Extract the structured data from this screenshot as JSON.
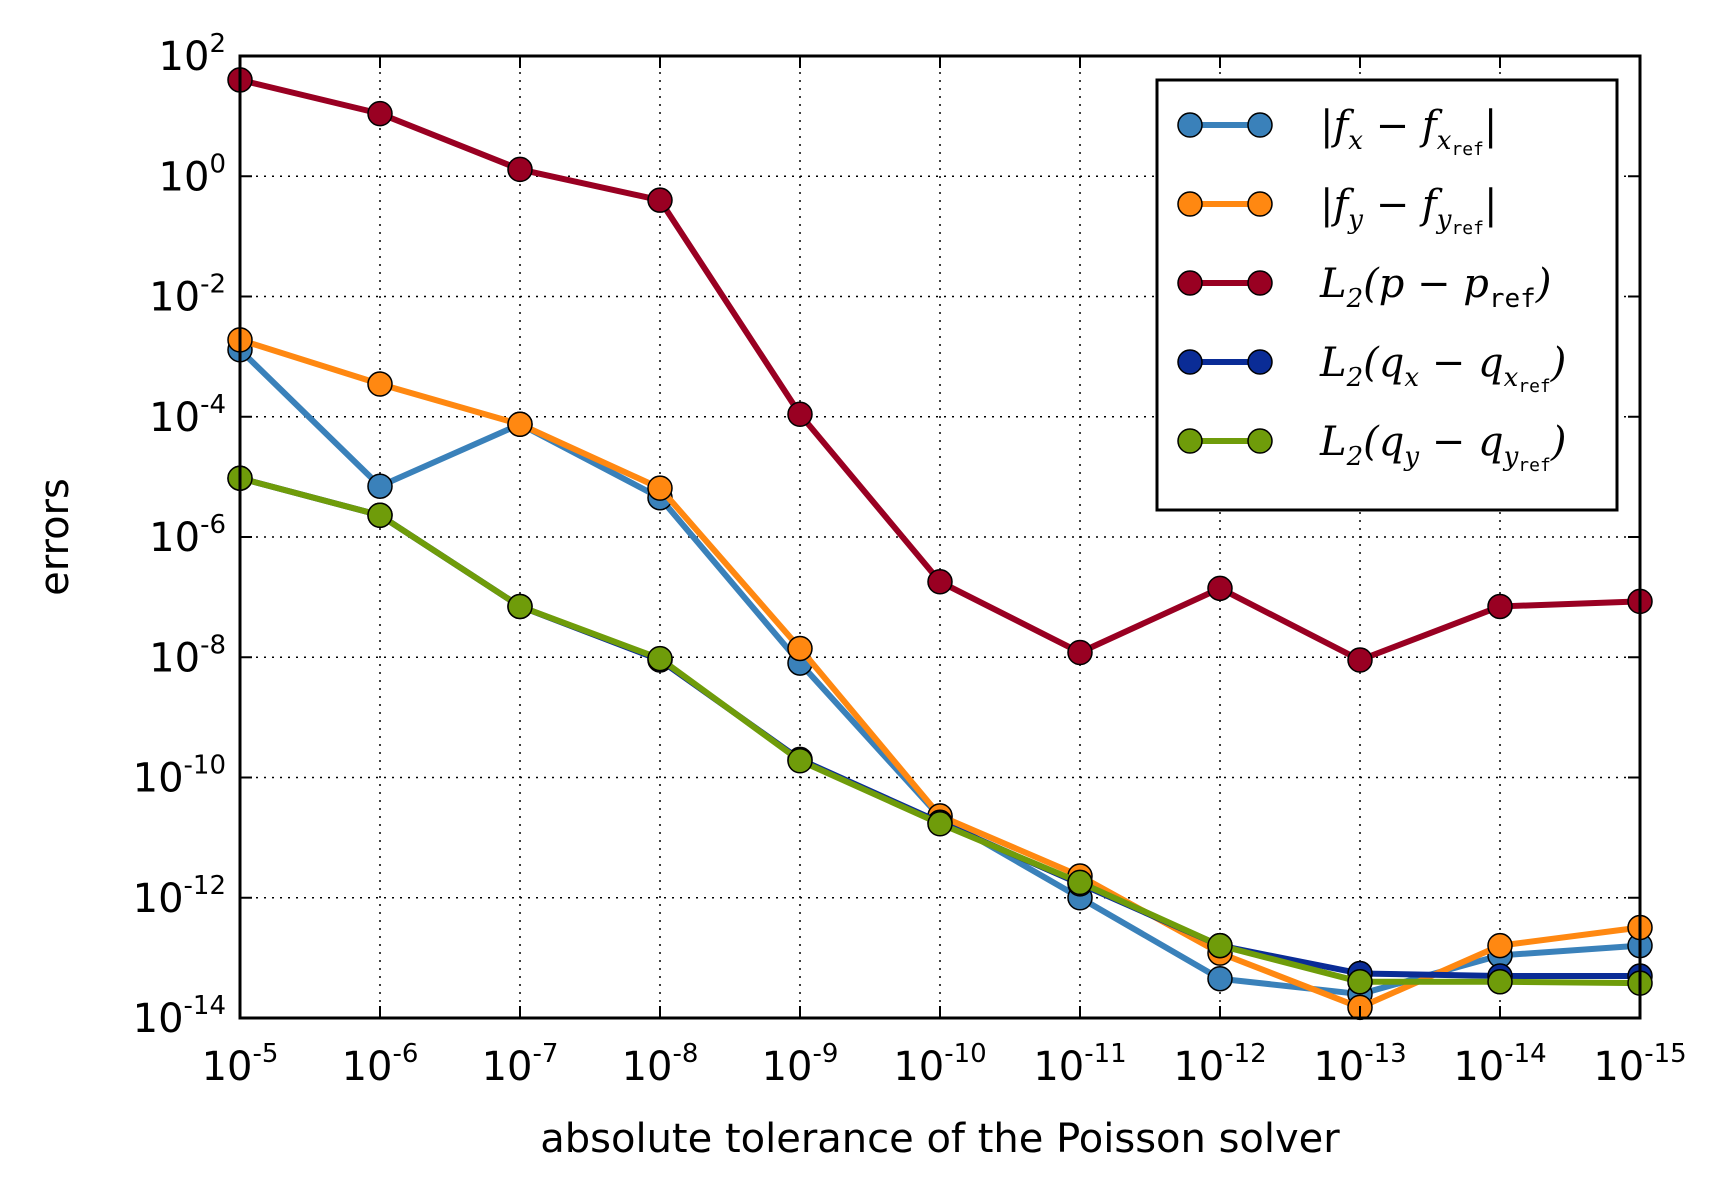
{
  "chart_data": {
    "type": "line",
    "title": "",
    "xlabel": "absolute tolerance of the Poisson solver",
    "ylabel": "errors",
    "x_scale": "log",
    "y_scale": "log",
    "x_reversed": true,
    "xlim": [
      1e-05,
      1e-15
    ],
    "ylim": [
      1e-14,
      100
    ],
    "grid": true,
    "legend_position": "top-right",
    "x": [
      1e-05,
      1e-06,
      1e-07,
      1e-08,
      1e-09,
      1e-10,
      1e-11,
      1e-12,
      1e-13,
      1e-14,
      1e-15
    ],
    "x_tick_labels": [
      {
        "base": "10",
        "exp": "-5"
      },
      {
        "base": "10",
        "exp": "-6"
      },
      {
        "base": "10",
        "exp": "-7"
      },
      {
        "base": "10",
        "exp": "-8"
      },
      {
        "base": "10",
        "exp": "-9"
      },
      {
        "base": "10",
        "exp": "-10"
      },
      {
        "base": "10",
        "exp": "-11"
      },
      {
        "base": "10",
        "exp": "-12"
      },
      {
        "base": "10",
        "exp": "-13"
      },
      {
        "base": "10",
        "exp": "-14"
      },
      {
        "base": "10",
        "exp": "-15"
      }
    ],
    "y_ticks": [
      1e-14,
      1e-12,
      1e-10,
      1e-08,
      1e-06,
      0.0001,
      0.01,
      1,
      100
    ],
    "y_tick_labels": [
      {
        "base": "10",
        "exp": "-14"
      },
      {
        "base": "10",
        "exp": "-12"
      },
      {
        "base": "10",
        "exp": "-10"
      },
      {
        "base": "10",
        "exp": "-8"
      },
      {
        "base": "10",
        "exp": "-6"
      },
      {
        "base": "10",
        "exp": "-4"
      },
      {
        "base": "10",
        "exp": "-2"
      },
      {
        "base": "10",
        "exp": "0"
      },
      {
        "base": "10",
        "exp": "2"
      }
    ],
    "series": [
      {
        "name": "|f_x − f_x_ref|",
        "legend_main": "|f",
        "legend_sub": "x",
        "legend_mid": " − f",
        "legend_sub2": "x",
        "legend_ref": "ref",
        "legend_end": "|",
        "color": "#3a81ba",
        "values": [
          0.0013,
          7e-06,
          7.5e-05,
          4.5e-06,
          8e-09,
          2.2e-11,
          1e-12,
          4.5e-14,
          2.5e-14,
          1.1e-13,
          1.6e-13
        ]
      },
      {
        "name": "|f_y − f_y_ref|",
        "legend_main": "|f",
        "legend_sub": "y",
        "legend_mid": " − f",
        "legend_sub2": "y",
        "legend_ref": "ref",
        "legend_end": "|",
        "color": "#ff8811",
        "values": [
          0.0019,
          0.00035,
          7.5e-05,
          6.5e-06,
          1.4e-08,
          2.3e-11,
          2.3e-12,
          1.2e-13,
          1.5e-14,
          1.6e-13,
          3.2e-13
        ]
      },
      {
        "name": "L2(p − p_ref)",
        "legend_main": "L",
        "legend_sub": "2",
        "legend_mid": "(p − p",
        "legend_sub2": "",
        "legend_ref": "ref",
        "legend_end": ")",
        "color": "#990022",
        "values": [
          40,
          11,
          1.3,
          0.4,
          0.00011,
          1.8e-07,
          1.2e-08,
          1.4e-07,
          9e-09,
          7e-08,
          8.5e-08
        ]
      },
      {
        "name": "L2(q_x − q_x_ref)",
        "legend_main": "L",
        "legend_sub": "2",
        "legend_mid": "(q",
        "legend_sub2": "x",
        "legend_ref": "ref",
        "legend_end": ")",
        "legend_mid2": " − q",
        "legend_sub3": "x",
        "color": "#0a2c96",
        "values": [
          9.5e-06,
          2.3e-06,
          7e-08,
          9e-09,
          2e-10,
          1.8e-11,
          1.7e-12,
          1.6e-13,
          5.5e-14,
          5e-14,
          5e-14
        ]
      },
      {
        "name": "L2(q_y − q_y_ref)",
        "legend_main": "L",
        "legend_sub": "2",
        "legend_mid": "(q",
        "legend_sub2": "y",
        "legend_ref": "ref",
        "legend_end": ")",
        "legend_mid2": " − q",
        "legend_sub3": "y",
        "color": "#6f9c0a",
        "values": [
          9.5e-06,
          2.3e-06,
          7e-08,
          9.5e-09,
          1.9e-10,
          1.7e-11,
          1.8e-12,
          1.6e-13,
          4e-14,
          4e-14,
          3.8e-14
        ]
      }
    ]
  }
}
